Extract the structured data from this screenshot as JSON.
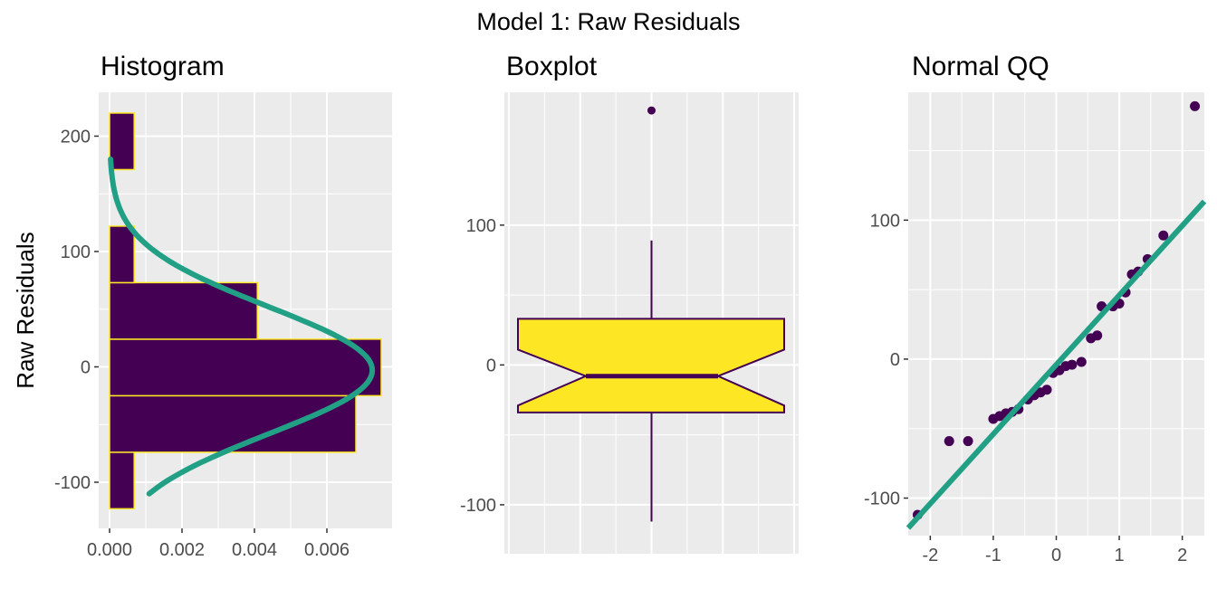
{
  "figure_title": "Model 1: Raw Residuals",
  "colors": {
    "panel_bg": "#ebebeb",
    "grid": "#ffffff",
    "bar_fill": "#440154",
    "bar_outline": "#fde725",
    "curve": "#21a085",
    "box_fill": "#fde725",
    "box_line": "#440154",
    "point": "#440154",
    "tick_text": "#4d4d4d"
  },
  "chart_data": [
    {
      "type": "histogram",
      "title": "Histogram",
      "xlabel": "",
      "ylabel": "Raw Residuals",
      "orientation": "horizontal",
      "xlim": [
        -0.0003,
        0.0078
      ],
      "ylim": [
        -140,
        238
      ],
      "x_ticks": [
        0,
        0.002,
        0.004,
        0.006
      ],
      "x_tick_labels": [
        "0.000",
        "0.002",
        "0.004",
        "0.006"
      ],
      "y_ticks": [
        -100,
        0,
        100,
        200
      ],
      "y_tick_labels": [
        "-100",
        "0",
        "100",
        "200"
      ],
      "bins": [
        {
          "from": -123,
          "to": -74,
          "density": 0.00068
        },
        {
          "from": -74,
          "to": -25,
          "density": 0.0068
        },
        {
          "from": -25,
          "to": 24,
          "density": 0.0075
        },
        {
          "from": 24,
          "to": 73,
          "density": 0.00408
        },
        {
          "from": 73,
          "to": 122,
          "density": 0.00068
        },
        {
          "from": 122,
          "to": 171,
          "density": 0
        },
        {
          "from": 171,
          "to": 220,
          "density": 0.00068
        }
      ],
      "density_curve": {
        "name": "normal density",
        "mean": -3,
        "sd": 55,
        "y_range": [
          -110,
          180
        ]
      },
      "grid": true
    },
    {
      "type": "boxplot",
      "title": "Boxplot",
      "notched": true,
      "ylim": [
        -135,
        195
      ],
      "y_ticks": [
        -100,
        0,
        100
      ],
      "y_tick_labels": [
        "-100",
        "0",
        "100"
      ],
      "median": -8,
      "q1": -34,
      "q3": 33,
      "notch_low": -29,
      "notch_high": 11,
      "whisker_low": -112,
      "whisker_high": 89,
      "outliers": [
        182
      ],
      "grid": true
    },
    {
      "type": "scatter",
      "title": "Normal QQ",
      "xlim": [
        -2.35,
        2.35
      ],
      "ylim": [
        -127,
        192
      ],
      "x_ticks": [
        -2,
        -1,
        0,
        1,
        2
      ],
      "x_tick_labels": [
        "-2",
        "-1",
        "0",
        "1",
        "2"
      ],
      "y_ticks": [
        -100,
        0,
        100
      ],
      "y_tick_labels": [
        "-100",
        "0",
        "100"
      ],
      "points": [
        [
          -2.2,
          -112
        ],
        [
          -1.7,
          -59
        ],
        [
          -1.4,
          -59
        ],
        [
          -1.0,
          -43
        ],
        [
          -0.9,
          -41
        ],
        [
          -0.8,
          -39
        ],
        [
          -0.7,
          -38
        ],
        [
          -0.6,
          -36
        ],
        [
          -0.45,
          -29
        ],
        [
          -0.35,
          -26
        ],
        [
          -0.25,
          -24
        ],
        [
          -0.15,
          -22
        ],
        [
          -0.05,
          -10
        ],
        [
          0.05,
          -8
        ],
        [
          0.15,
          -5
        ],
        [
          0.25,
          -4
        ],
        [
          0.4,
          -2
        ],
        [
          0.55,
          15
        ],
        [
          0.65,
          17
        ],
        [
          0.72,
          38
        ],
        [
          0.9,
          38
        ],
        [
          1.0,
          40
        ],
        [
          1.1,
          48
        ],
        [
          1.2,
          61
        ],
        [
          1.3,
          63
        ],
        [
          1.45,
          72
        ],
        [
          1.7,
          89
        ],
        [
          2.2,
          182
        ]
      ],
      "reference_line": {
        "intercept": -4,
        "slope": 50
      },
      "grid": true
    }
  ]
}
